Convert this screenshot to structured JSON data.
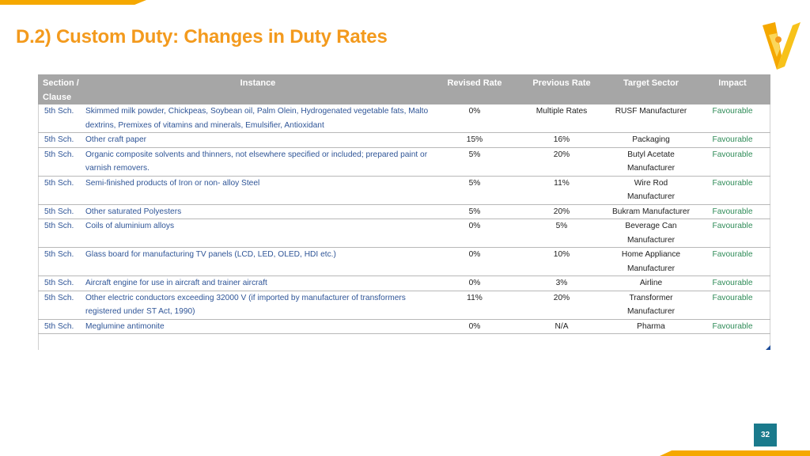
{
  "title": "D.2) Custom Duty: Changes in Duty Rates",
  "colors": {
    "accent": "#f39a1d",
    "header_bg": "#a6a6a6",
    "impact": "#2e8b57",
    "section_text": "#2f5597",
    "page_badge": "#1a7a8c"
  },
  "table": {
    "headers": {
      "section": "Section / Clause",
      "instance": "Instance",
      "revised": "Revised Rate",
      "previous": "Previous Rate",
      "sector": "Target Sector",
      "impact": "Impact"
    },
    "rows": [
      {
        "section": "5th Sch.",
        "instance": "Skimmed milk powder, Chickpeas, Soybean oil, Palm Olein, Hydrogenated vegetable fats, Malto dextrins, Premixes of vitamins and minerals, Emulsifier, Antioxidant",
        "revised": "0%",
        "previous": "Multiple Rates",
        "sector": "RUSF Manufacturer",
        "impact": "Favourable"
      },
      {
        "section": "5th Sch.",
        "instance": "Other craft paper",
        "revised": "15%",
        "previous": "16%",
        "sector": "Packaging",
        "impact": "Favourable"
      },
      {
        "section": "5th Sch.",
        "instance": "Organic composite solvents and thinners, not elsewhere specified or included; prepared paint or varnish removers.",
        "revised": "5%",
        "previous": "20%",
        "sector": "Butyl Acetate Manufacturer",
        "impact": "Favourable"
      },
      {
        "section": "5th Sch.",
        "instance": "Semi-finished products of Iron or non- alloy Steel",
        "revised": "5%",
        "previous": "11%",
        "sector": "Wire Rod Manufacturer",
        "impact": "Favourable"
      },
      {
        "section": "5th Sch.",
        "instance": "Other saturated Polyesters",
        "revised": "5%",
        "previous": "20%",
        "sector": "Bukram Manufacturer",
        "impact": "Favourable"
      },
      {
        "section": "5th Sch.",
        "instance": "Coils of aluminium alloys",
        "revised": "0%",
        "previous": "5%",
        "sector": "Beverage Can Manufacturer",
        "impact": "Favourable"
      },
      {
        "section": "5th Sch.",
        "instance": "Glass board for manufacturing TV panels (LCD, LED, OLED, HDI etc.)",
        "revised": "0%",
        "previous": "10%",
        "sector": "Home Appliance Manufacturer",
        "impact": "Favourable"
      },
      {
        "section": "5th Sch.",
        "instance": "Aircraft engine for use in aircraft and trainer aircraft",
        "revised": "0%",
        "previous": "3%",
        "sector": "Airline",
        "impact": "Favourable"
      },
      {
        "section": "5th Sch.",
        "instance": "Other electric conductors exceeding 32000 V (if imported by manufacturer of transformers registered under ST Act, 1990)",
        "revised": "11%",
        "previous": "20%",
        "sector": "Transformer Manufacturer",
        "impact": "Favourable"
      },
      {
        "section": "5th Sch.",
        "instance": "Meglumine antimonite",
        "revised": "0%",
        "previous": "N/A",
        "sector": "Pharma",
        "impact": "Favourable"
      }
    ]
  },
  "page_number": "32",
  "logo_icon": "v-check-logo-icon"
}
